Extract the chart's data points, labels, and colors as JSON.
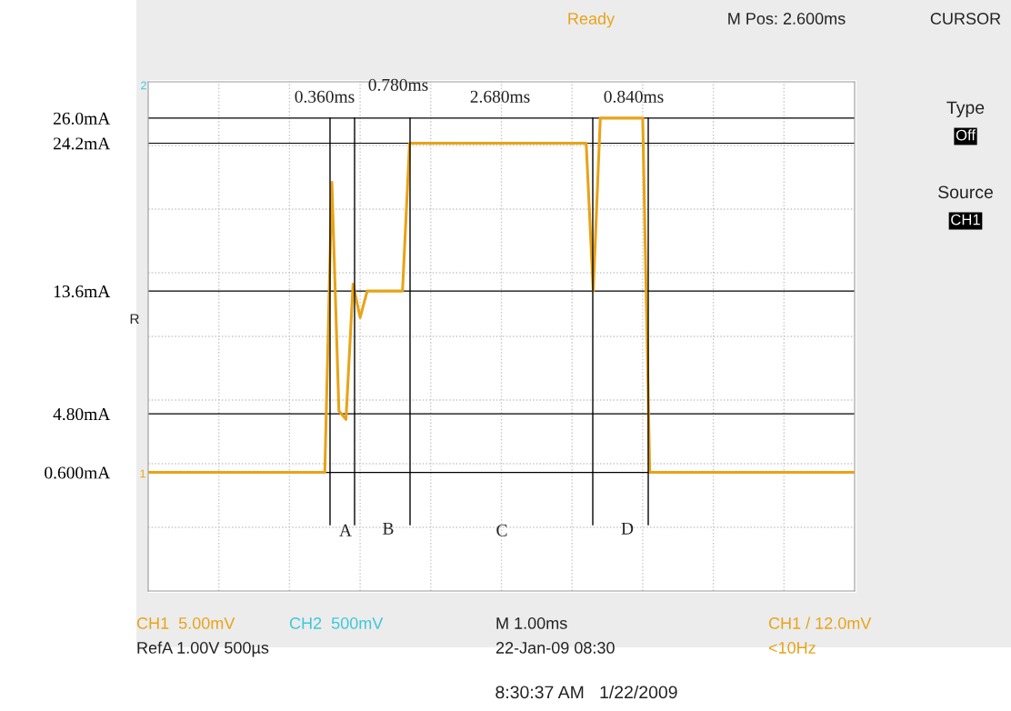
{
  "chart_data": {
    "type": "line",
    "categories": [
      null,
      null,
      null,
      null,
      null,
      null,
      null,
      null,
      null,
      null,
      null,
      null,
      null,
      null,
      null,
      null,
      null,
      null,
      null,
      null,
      null,
      null,
      null,
      null,
      null,
      null,
      null,
      null,
      null,
      null,
      null,
      null,
      null,
      null,
      null,
      null,
      null,
      null,
      null,
      null,
      null,
      null,
      null,
      null,
      null,
      null,
      null,
      null,
      null,
      null,
      null,
      null,
      null,
      null,
      null,
      null,
      null,
      null,
      null,
      null,
      null,
      null,
      null,
      null,
      null,
      null,
      null,
      null,
      null,
      null,
      null,
      null,
      null,
      null,
      null,
      null,
      null,
      null,
      null,
      null,
      null,
      null,
      null,
      null,
      null,
      null,
      null,
      null,
      null,
      null,
      null,
      null,
      null,
      null,
      null,
      null,
      null,
      null,
      null,
      null,
      null
    ],
    "series": [
      {
        "color": "#e8a317",
        "values": [
          0.6,
          0.6,
          0.6,
          0.6,
          0.6,
          0.6,
          0.6,
          0.6,
          0.6,
          0.6,
          0.6,
          0.6,
          0.6,
          0.6,
          0.6,
          0.6,
          0.6,
          0.6,
          0.6,
          0.6,
          0.6,
          0.6,
          0.6,
          0.6,
          0.6,
          0.6,
          21.4,
          5.0,
          4.4,
          14.1,
          11.7,
          13.6,
          13.6,
          13.6,
          13.6,
          13.6,
          13.6,
          24.2,
          24.2,
          24.2,
          24.2,
          24.2,
          24.2,
          24.2,
          24.2,
          24.2,
          24.2,
          24.2,
          24.2,
          24.2,
          24.2,
          24.2,
          24.2,
          24.2,
          24.2,
          24.2,
          24.2,
          24.2,
          24.2,
          24.2,
          24.2,
          24.2,
          24.2,
          13.6,
          26.0,
          26.0,
          26.0,
          26.0,
          26.0,
          26.0,
          26.0,
          0.6,
          0.6,
          0.6,
          0.6,
          0.6,
          0.6,
          0.6,
          0.6,
          0.6,
          0.6,
          0.6,
          0.6,
          0.6,
          0.6,
          0.6,
          0.6,
          0.6,
          0.6,
          0.6,
          0.6,
          0.6,
          0.6,
          0.6,
          0.6,
          0.6,
          0.6,
          0.6,
          0.6,
          0.6,
          0.6
        ]
      }
    ],
    "ylim": [
      -7.9,
      28.6
    ],
    "yticks": [
      {
        "value": 0.6,
        "label": "0.600mA"
      },
      {
        "value": 4.8,
        "label": "4.80mA"
      },
      {
        "value": 13.6,
        "label": "13.6mA"
      },
      {
        "value": 24.2,
        "label": "24.2mA"
      },
      {
        "value": 26.0,
        "label": "26.0mA"
      }
    ],
    "tick_labels": "y",
    "grid": true,
    "line_style": "solid",
    "marker": "none",
    "ref_lines": [
      {
        "axis": "y",
        "value": 26.0,
        "color": "#000000"
      },
      {
        "axis": "y",
        "value": 24.2,
        "color": "#000000"
      },
      {
        "axis": "y",
        "value": 13.6,
        "color": "#000000"
      },
      {
        "axis": "y",
        "value": 4.8,
        "color": "#000000"
      },
      {
        "axis": "y",
        "value": 0.6,
        "color": "#000000"
      }
    ],
    "annotations": [
      "0.360ms",
      "0.780ms",
      "2.680ms",
      "0.840ms",
      "A",
      "B",
      "C",
      "D",
      "Ready",
      "M Pos: 2.600ms",
      "CURSOR",
      "Type",
      "Off",
      "Source",
      "CH1",
      "CH1  5.00mV",
      "CH2  500mV",
      "M 1.00ms",
      "CH1 / 12.0mV",
      "RefA 1.00V 500µs",
      "22-Jan-09 08:30",
      "<10Hz",
      "8:30:37 AM   1/22/2009",
      "R",
      "1",
      "2"
    ]
  }
}
